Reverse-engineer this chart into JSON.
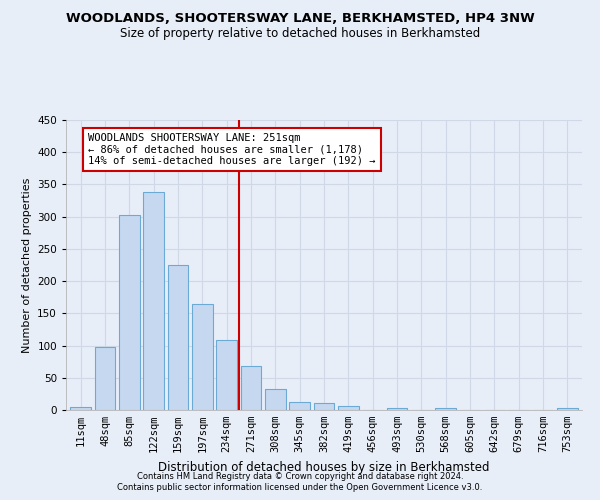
{
  "title": "WOODLANDS, SHOOTERSWAY LANE, BERKHAMSTED, HP4 3NW",
  "subtitle": "Size of property relative to detached houses in Berkhamsted",
  "xlabel": "Distribution of detached houses by size in Berkhamsted",
  "ylabel": "Number of detached properties",
  "footer1": "Contains HM Land Registry data © Crown copyright and database right 2024.",
  "footer2": "Contains public sector information licensed under the Open Government Licence v3.0.",
  "bar_labels": [
    "11sqm",
    "48sqm",
    "85sqm",
    "122sqm",
    "159sqm",
    "197sqm",
    "234sqm",
    "271sqm",
    "308sqm",
    "345sqm",
    "382sqm",
    "419sqm",
    "456sqm",
    "493sqm",
    "530sqm",
    "568sqm",
    "605sqm",
    "642sqm",
    "679sqm",
    "716sqm",
    "753sqm"
  ],
  "bar_values": [
    5,
    98,
    303,
    338,
    225,
    165,
    108,
    68,
    33,
    12,
    11,
    6,
    0,
    3,
    0,
    3,
    0,
    0,
    0,
    0,
    3
  ],
  "bar_color": "#c5d8f0",
  "bar_edge_color": "#6aaad4",
  "marker_line_color": "#cc0000",
  "annotation_line1": "WOODLANDS SHOOTERSWAY LANE: 251sqm",
  "annotation_line2": "← 86% of detached houses are smaller (1,178)",
  "annotation_line3": "14% of semi-detached houses are larger (192) →",
  "annotation_box_facecolor": "#ffffff",
  "annotation_box_edgecolor": "#cc0000",
  "background_color": "#e8eef8",
  "grid_color": "#d0d8e8",
  "ylim": [
    0,
    450
  ],
  "yticks": [
    0,
    50,
    100,
    150,
    200,
    250,
    300,
    350,
    400,
    450
  ],
  "title_fontsize": 9.5,
  "subtitle_fontsize": 8.5,
  "xlabel_fontsize": 8.5,
  "ylabel_fontsize": 8,
  "tick_fontsize": 7.5,
  "annotation_fontsize": 7.5,
  "footer_fontsize": 6
}
